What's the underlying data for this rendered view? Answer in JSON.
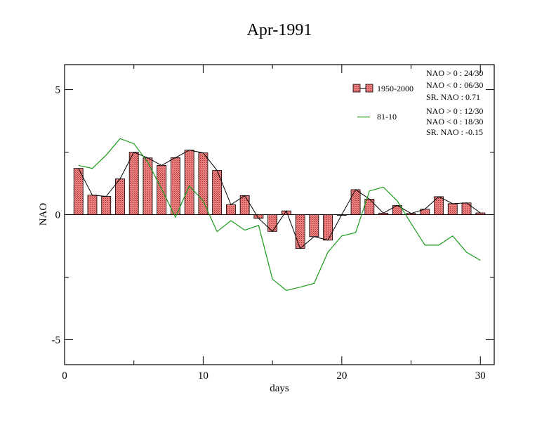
{
  "chart_data": {
    "type": "bar",
    "title": "Apr-1991",
    "xlabel": "days",
    "ylabel": "NAO",
    "xlim": [
      0,
      31
    ],
    "ylim": [
      -6,
      6
    ],
    "x_ticks": [
      0,
      10,
      20,
      30
    ],
    "x_tick_labels": [
      "0",
      "10",
      "20",
      "30"
    ],
    "y_ticks": [
      5,
      0,
      -5
    ],
    "y_tick_labels": [
      "5",
      "0",
      "-5"
    ],
    "grid": false,
    "legend_position": "top-right",
    "colors": {
      "bar_fill": "#f08080",
      "bar_outline": "#000000",
      "connector_line": "#000000",
      "green_line": "#1a9a1a"
    },
    "series": [
      {
        "name": "1950-2000",
        "kind": "bar",
        "x": [
          1,
          2,
          3,
          4,
          5,
          6,
          7,
          8,
          9,
          10,
          11,
          12,
          13,
          14,
          15,
          16,
          17,
          18,
          19,
          20,
          21,
          22,
          23,
          24,
          25,
          26,
          27,
          28,
          29,
          30
        ],
        "values": [
          1.85,
          0.78,
          0.73,
          1.43,
          2.5,
          2.27,
          1.97,
          2.28,
          2.58,
          2.47,
          1.77,
          0.4,
          0.76,
          -0.15,
          -0.67,
          0.15,
          -1.35,
          -0.88,
          -1.02,
          0.0,
          1.0,
          0.62,
          0.06,
          0.37,
          0.05,
          0.22,
          0.72,
          0.44,
          0.47,
          0.07
        ]
      },
      {
        "name": "81-10",
        "kind": "line",
        "x": [
          1,
          2,
          3,
          4,
          5,
          6,
          7,
          8,
          9,
          10,
          11,
          12,
          13,
          14,
          15,
          16,
          17,
          18,
          19,
          20,
          21,
          22,
          23,
          24,
          25,
          26,
          27,
          28,
          29,
          30
        ],
        "values": [
          1.97,
          1.85,
          2.38,
          3.04,
          2.84,
          2.1,
          1.03,
          -0.1,
          1.15,
          0.55,
          -0.68,
          -0.24,
          -0.62,
          -0.43,
          -2.58,
          -3.03,
          -2.9,
          -2.75,
          -1.5,
          -0.85,
          -0.72,
          0.95,
          1.1,
          0.55,
          -0.35,
          -1.22,
          -1.22,
          -0.85,
          -1.5,
          -1.83
        ]
      }
    ],
    "stats": {
      "1950-2000": [
        "NAO > 0 : 24/30",
        "NAO < 0 : 06/30",
        "SR. NAO :  0.71"
      ],
      "81-10": [
        "NAO > 0 : 12/30",
        "NAO < 0 : 18/30",
        "SR. NAO : -0.15"
      ]
    }
  }
}
